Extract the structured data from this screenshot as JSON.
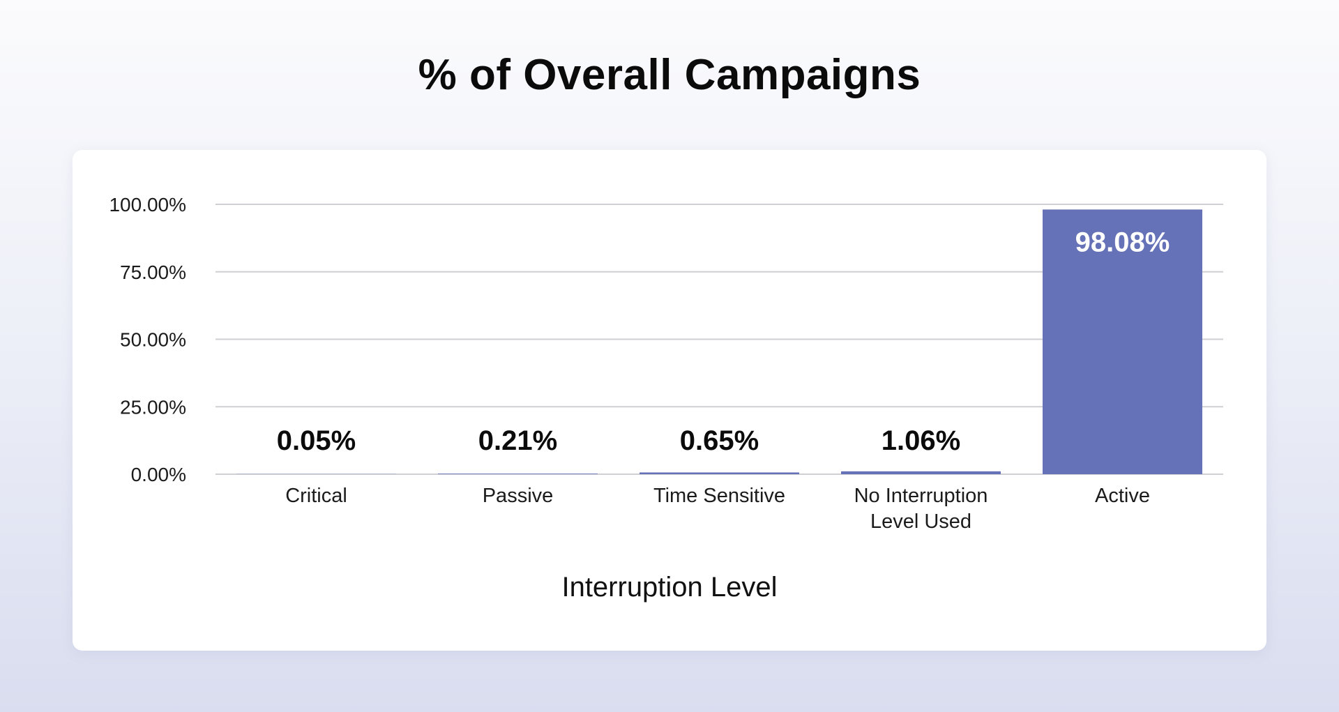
{
  "page": {
    "title": "% of Overall Campaigns"
  },
  "chart_data": {
    "type": "bar",
    "title": "% of Overall Campaigns",
    "xlabel": "Interruption Level",
    "ylabel": "",
    "categories": [
      "Critical",
      "Passive",
      "Time Sensitive",
      "No Interruption Level Used",
      "Active"
    ],
    "category_lines": [
      [
        "Critical"
      ],
      [
        "Passive"
      ],
      [
        "Time Sensitive"
      ],
      [
        "No Interruption",
        "Level Used"
      ],
      [
        "Active"
      ]
    ],
    "values": [
      0.05,
      0.21,
      0.65,
      1.06,
      98.08
    ],
    "data_labels": [
      "0.05%",
      "0.21%",
      "0.65%",
      "1.06%",
      "98.08%"
    ],
    "ylim": [
      0,
      100
    ],
    "yticks": [
      0,
      25,
      50,
      75,
      100
    ],
    "ytick_labels": [
      "0.00%",
      "25.00%",
      "50.00%",
      "75.00%",
      "100.00%"
    ],
    "grid": true,
    "bar_color": "#6672b8",
    "gridline_color": "#cfcfd4"
  }
}
